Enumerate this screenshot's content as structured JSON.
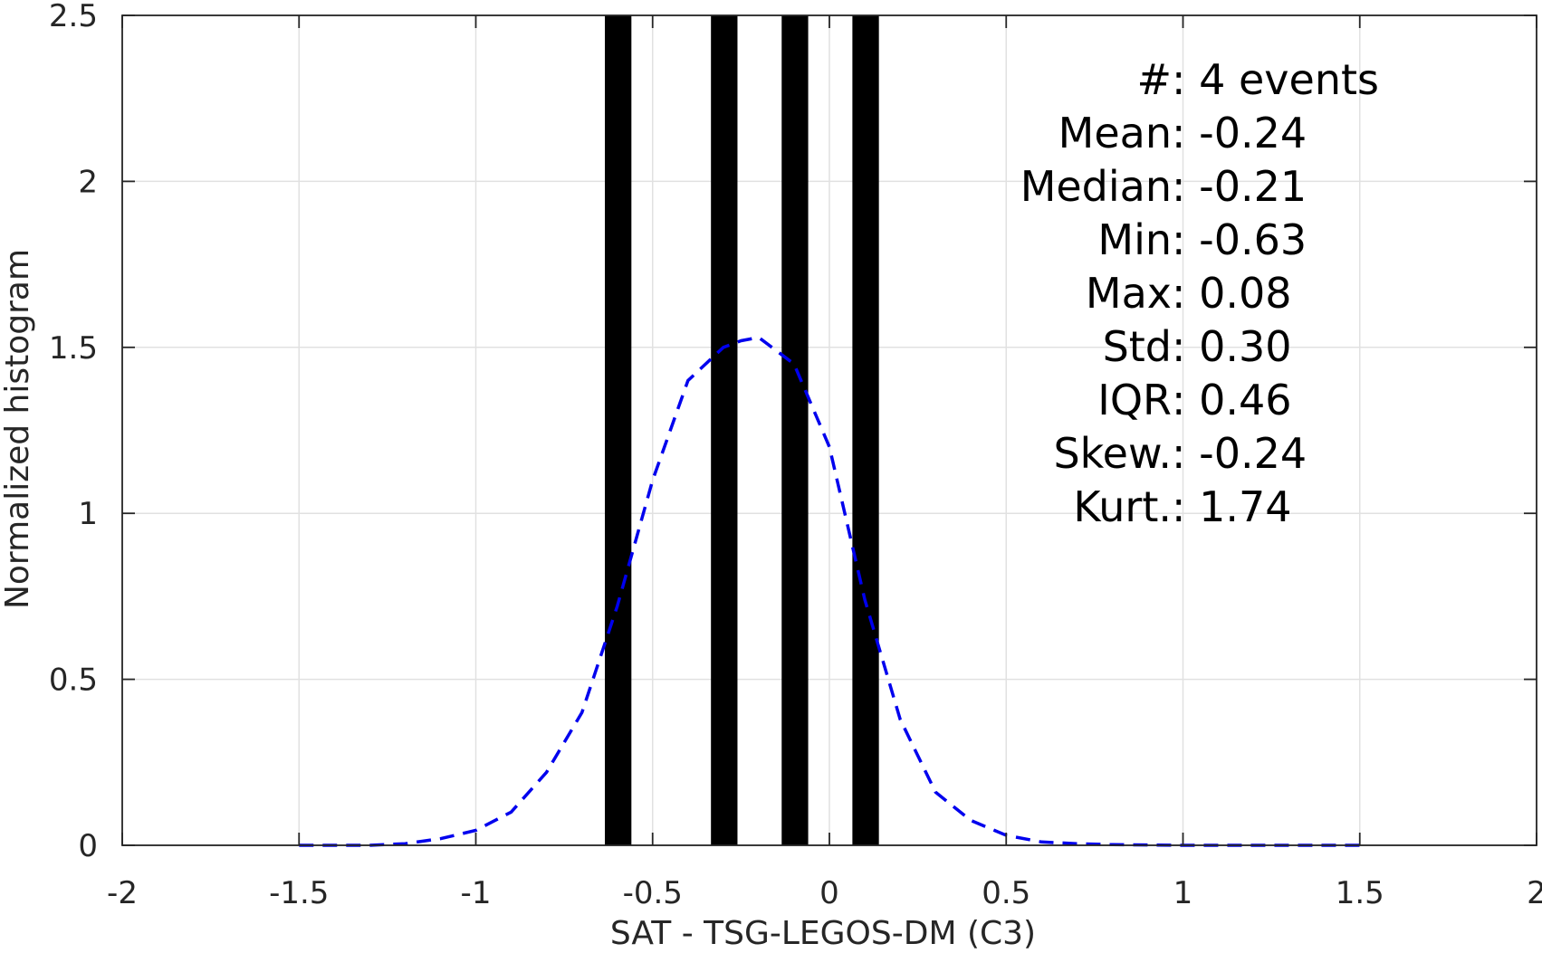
{
  "chart_data": {
    "type": "bar",
    "xlabel": "SAT - TSG-LEGOS-DM (C3)",
    "ylabel": "Normalized histogram",
    "xlim": [
      -2,
      2
    ],
    "ylim": [
      0,
      2.5
    ],
    "grid": true,
    "xticks": [
      -2,
      -1.5,
      -1,
      -0.5,
      0,
      0.5,
      1,
      1.5,
      2
    ],
    "xtick_labels": [
      "-2",
      "-1.5",
      "-1",
      "-0.5",
      "0",
      "0.5",
      "1",
      "1.5",
      "2"
    ],
    "yticks": [
      0,
      0.5,
      1,
      1.5,
      2,
      2.5
    ],
    "ytick_labels": [
      "0",
      "0.5",
      "1",
      "1.5",
      "2",
      "2.5"
    ],
    "bars": [
      {
        "x_start": -0.635,
        "x_end": -0.56,
        "value": 2.5
      },
      {
        "x_start": -0.335,
        "x_end": -0.26,
        "value": 2.5
      },
      {
        "x_start": -0.135,
        "x_end": -0.06,
        "value": 2.5
      },
      {
        "x_start": 0.065,
        "x_end": 0.14,
        "value": 2.5
      }
    ],
    "bar_color": "#000000",
    "curve": {
      "style": "dashed",
      "color": "#0000ee",
      "x": [
        -1.5,
        -1.4,
        -1.3,
        -1.2,
        -1.1,
        -1.0,
        -0.9,
        -0.8,
        -0.7,
        -0.6,
        -0.5,
        -0.4,
        -0.3,
        -0.25,
        -0.2,
        -0.1,
        0.0,
        0.1,
        0.2,
        0.3,
        0.4,
        0.5,
        0.6,
        0.7,
        0.8,
        0.9,
        1.0,
        1.1,
        1.2,
        1.3,
        1.4,
        1.5
      ],
      "y": [
        0.0,
        0.0,
        0.0,
        0.005,
        0.02,
        0.045,
        0.1,
        0.22,
        0.4,
        0.72,
        1.1,
        1.4,
        1.5,
        1.52,
        1.53,
        1.45,
        1.2,
        0.74,
        0.38,
        0.16,
        0.075,
        0.03,
        0.01,
        0.005,
        0.002,
        0.001,
        0.0,
        0.0,
        0.0,
        0.0,
        0.0,
        0.0
      ]
    },
    "stats": [
      {
        "label": "#  ",
        "sep": ": ",
        "value": "4 events"
      },
      {
        "label": "Mean",
        "sep": " : ",
        "value": "-0.24"
      },
      {
        "label": "Median",
        "sep": " : ",
        "value": "-0.21"
      },
      {
        "label": "Min",
        "sep": " : ",
        "value": "-0.63"
      },
      {
        "label": "Max",
        "sep": " : ",
        "value": "0.08"
      },
      {
        "label": "Std",
        "sep": " : ",
        "value": "0.30"
      },
      {
        "label": "IQR",
        "sep": " : ",
        "value": "0.46"
      },
      {
        "label": "Skew.",
        "sep": " : ",
        "value": "-0.24"
      },
      {
        "label": "Kurt.",
        "sep": " : ",
        "value": "1.74"
      }
    ]
  }
}
